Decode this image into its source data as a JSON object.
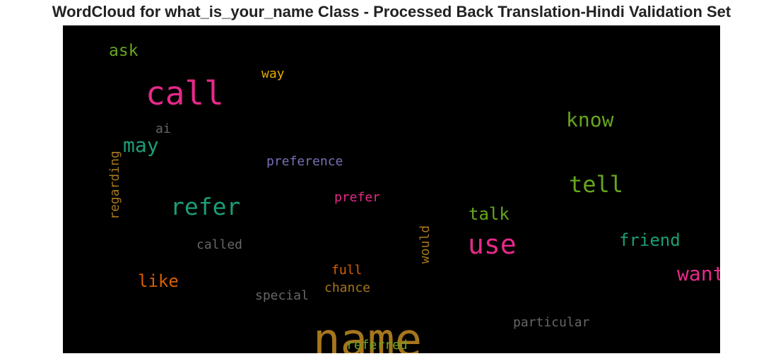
{
  "chart_data": {
    "type": "wordcloud",
    "title": "WordCloud for what_is_your_name Class - Processed Back Translation-Hindi Validation Set",
    "background": "#000000",
    "words": [
      {
        "text": "name",
        "color": "#a6761d"
      },
      {
        "text": "call",
        "color": "#e7298a"
      },
      {
        "text": "use",
        "color": "#e7298a"
      },
      {
        "text": "refer",
        "color": "#1b9e77"
      },
      {
        "text": "tell",
        "color": "#66a61e"
      },
      {
        "text": "know",
        "color": "#66a61e"
      },
      {
        "text": "may",
        "color": "#1b9e77"
      },
      {
        "text": "want",
        "color": "#e7298a"
      },
      {
        "text": "friend",
        "color": "#1b9e77"
      },
      {
        "text": "like",
        "color": "#d95f02"
      },
      {
        "text": "talk",
        "color": "#66a61e"
      },
      {
        "text": "ask",
        "color": "#66a61e"
      },
      {
        "text": "way",
        "color": "#e6ab02"
      },
      {
        "text": "ai",
        "color": "#666666"
      },
      {
        "text": "preference",
        "color": "#7570b3"
      },
      {
        "text": "prefer",
        "color": "#e7298a"
      },
      {
        "text": "regarding",
        "color": "#a6761d"
      },
      {
        "text": "called",
        "color": "#666666"
      },
      {
        "text": "would",
        "color": "#a6761d"
      },
      {
        "text": "full",
        "color": "#d95f02"
      },
      {
        "text": "chance",
        "color": "#a6761d"
      },
      {
        "text": "special",
        "color": "#666666"
      },
      {
        "text": "particular",
        "color": "#666666"
      },
      {
        "text": "referred",
        "color": "#66a61e"
      }
    ]
  }
}
